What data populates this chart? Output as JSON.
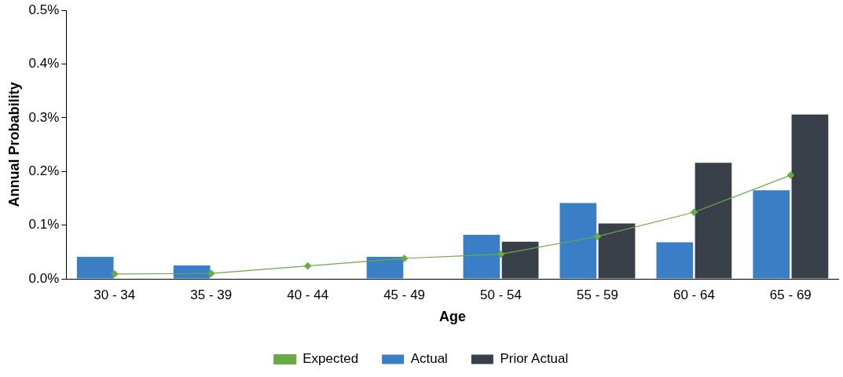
{
  "chart_data": {
    "type": "bar",
    "xlabel": "Age",
    "ylabel": "Annual Probability",
    "categories": [
      "30 - 34",
      "35 - 39",
      "40 - 44",
      "45 - 49",
      "50 - 54",
      "55 - 59",
      "60 - 64",
      "65 - 69"
    ],
    "series": [
      {
        "name": "Actual",
        "color": "#3a7fc6",
        "values": [
          0.041,
          0.025,
          null,
          0.041,
          0.082,
          0.141,
          0.068,
          0.165
        ]
      },
      {
        "name": "Prior Actual",
        "color": "#3a404a",
        "values": [
          null,
          null,
          null,
          null,
          0.069,
          0.103,
          0.216,
          0.306
        ]
      },
      {
        "name": "Expected",
        "type": "line",
        "color": "#6aaa46",
        "marker": "diamond",
        "values": [
          0.009,
          0.01,
          0.024,
          0.038,
          0.046,
          0.079,
          0.124,
          0.193
        ]
      }
    ],
    "ylim": [
      0,
      0.5
    ],
    "yticks": [
      {
        "value": 0,
        "label": "0.0%"
      },
      {
        "value": 0.1,
        "label": "0.1%"
      },
      {
        "value": 0.2,
        "label": "0.2%"
      },
      {
        "value": 0.3,
        "label": "0.3%"
      },
      {
        "value": 0.4,
        "label": "0.4%"
      },
      {
        "value": 0.5,
        "label": "0.5%"
      }
    ],
    "grid": false,
    "legend": "bottom"
  }
}
